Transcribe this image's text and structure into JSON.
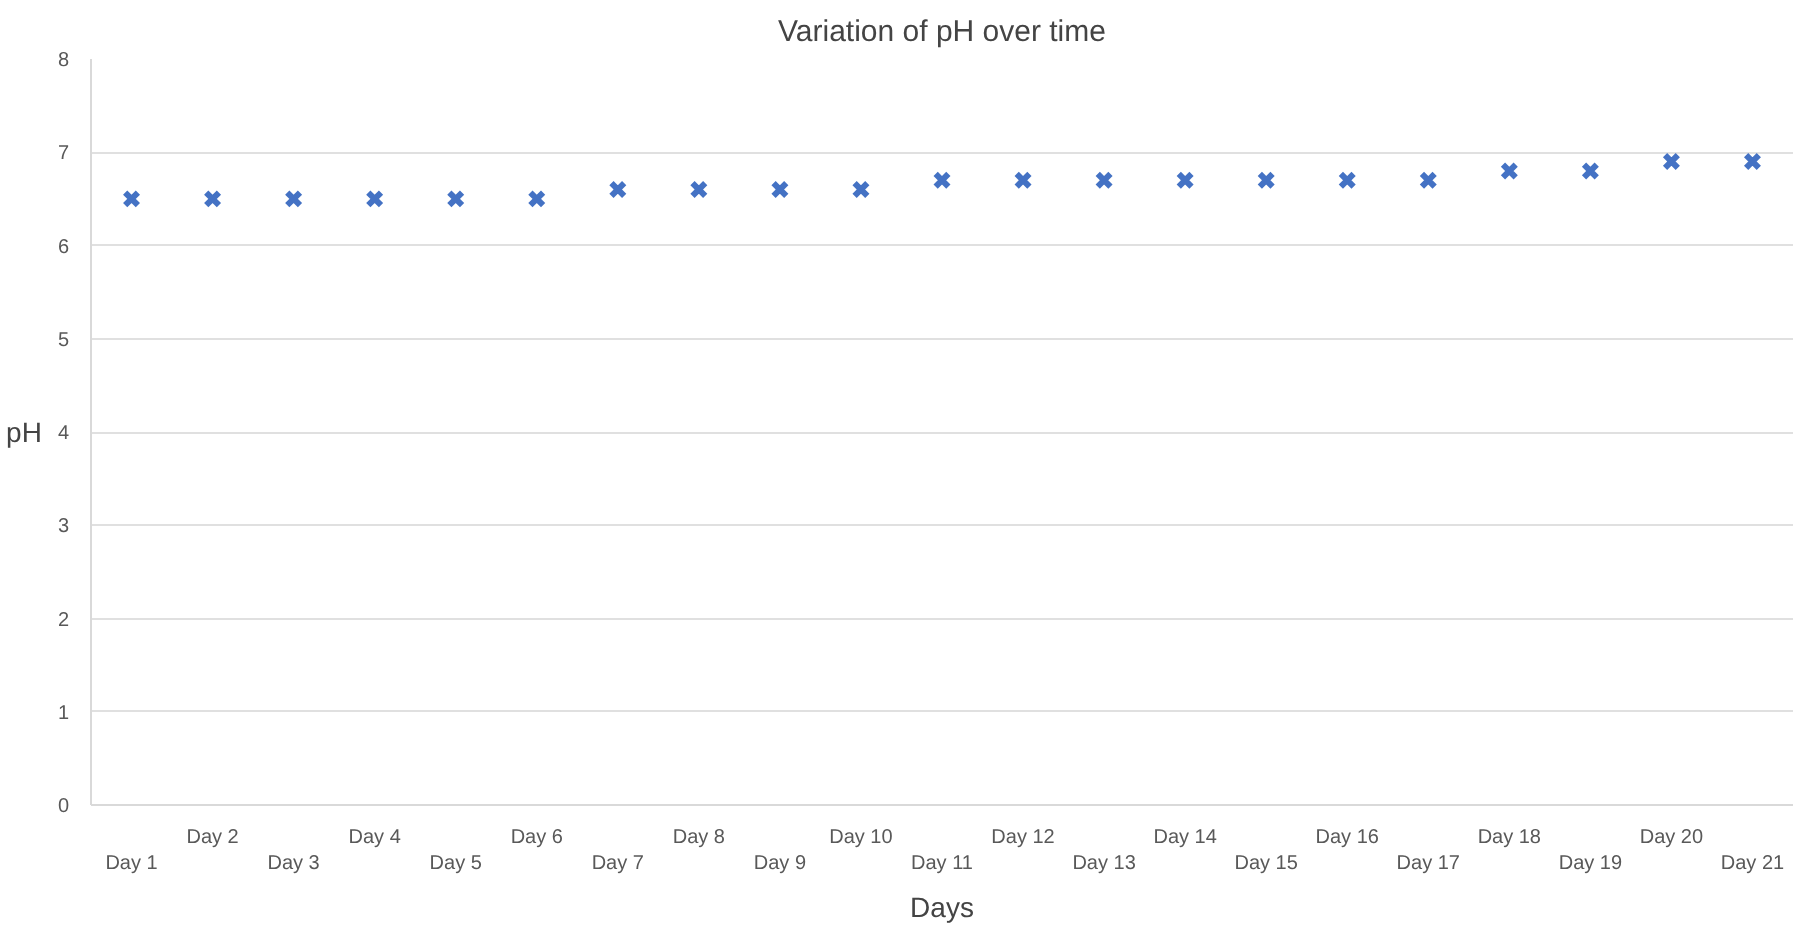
{
  "chart_data": {
    "type": "scatter",
    "title": "Variation of pH over time",
    "xlabel": "Days",
    "ylabel": "pH",
    "categories": [
      "Day 1",
      "Day 2",
      "Day 3",
      "Day 4",
      "Day 5",
      "Day 6",
      "Day 7",
      "Day 8",
      "Day 9",
      "Day 10",
      "Day 11",
      "Day 12",
      "Day 13",
      "Day 14",
      "Day 15",
      "Day 16",
      "Day 17",
      "Day 18",
      "Day 19",
      "Day 20",
      "Day 21"
    ],
    "values": [
      6.5,
      6.5,
      6.5,
      6.5,
      6.5,
      6.5,
      6.6,
      6.6,
      6.6,
      6.6,
      6.7,
      6.7,
      6.7,
      6.7,
      6.7,
      6.7,
      6.7,
      6.8,
      6.8,
      6.9,
      6.9
    ],
    "color": "#4472c4",
    "marker": "cross",
    "ylim": [
      0,
      8
    ],
    "yticks": [
      0,
      1,
      2,
      3,
      4,
      5,
      6,
      7,
      8
    ],
    "grid": "y"
  }
}
